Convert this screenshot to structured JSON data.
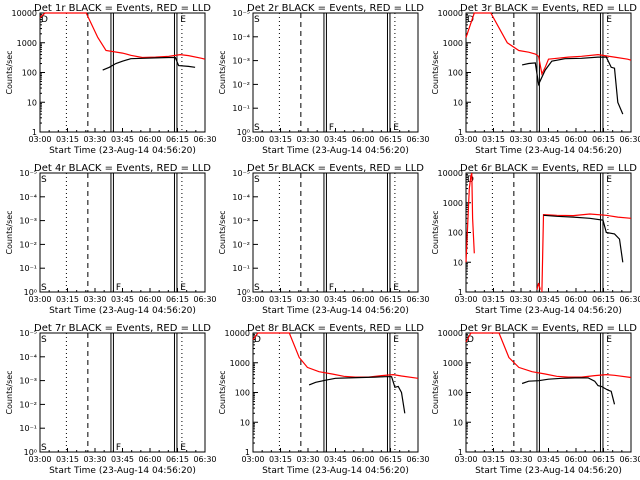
{
  "chart_data": {
    "type": "line",
    "x_axis_title": "Start Time (23-Aug-14 04:56:20)",
    "x_ticks": [
      "03:00",
      "03:15",
      "03:30",
      "03:45",
      "06:00",
      "06:15",
      "06:30"
    ],
    "ylabel": "Counts/sec",
    "y_scale": "log",
    "y_range": [
      1,
      10000
    ],
    "y_ticks_numeric": [
      "1",
      "10",
      "100",
      "1000",
      "10000"
    ],
    "y_ticks_exponent": [
      "10⁰",
      "10⁻¹",
      "10⁻²",
      "10⁻³",
      "10⁻⁴",
      "10⁻⁵"
    ],
    "series_colors": {
      "events": "#000000",
      "lld": "#ff0000"
    },
    "panels": [
      {
        "title": "Det 1r BLACK = Events, RED = LLD",
        "has_data": true,
        "marker": "D",
        "mode": "numeric",
        "lld": [
          [
            0.0,
            7000
          ],
          [
            0.03,
            10000
          ],
          [
            0.28,
            10000
          ],
          [
            0.35,
            1500
          ],
          [
            0.4,
            550
          ],
          [
            0.5,
            450
          ],
          [
            0.55,
            380
          ],
          [
            0.62,
            320
          ],
          [
            0.7,
            330
          ],
          [
            0.78,
            350
          ],
          [
            0.85,
            400
          ],
          [
            0.9,
            370
          ],
          [
            0.98,
            300
          ],
          [
            1.0,
            280
          ]
        ],
        "events": [
          [
            0.38,
            120
          ],
          [
            0.42,
            150
          ],
          [
            0.46,
            200
          ],
          [
            0.5,
            240
          ],
          [
            0.55,
            290
          ],
          [
            0.62,
            300
          ],
          [
            0.7,
            310
          ],
          [
            0.78,
            320
          ],
          [
            0.82,
            320
          ],
          [
            0.84,
            170
          ],
          [
            0.9,
            160
          ],
          [
            0.94,
            150
          ]
        ]
      },
      {
        "title": "Det 2r BLACK = Events, RED = LLD",
        "has_data": false,
        "marker": "S",
        "mode": "exponent",
        "lld": [],
        "events": []
      },
      {
        "title": "Det 3r BLACK = Events, RED = LLD",
        "has_data": true,
        "marker": "D",
        "mode": "numeric",
        "lld": [
          [
            0.0,
            1500
          ],
          [
            0.05,
            10000
          ],
          [
            0.15,
            10000
          ],
          [
            0.22,
            2000
          ],
          [
            0.25,
            1000
          ],
          [
            0.32,
            550
          ],
          [
            0.38,
            480
          ],
          [
            0.42,
            420
          ],
          [
            0.44,
            350
          ],
          [
            0.46,
            90
          ],
          [
            0.48,
            150
          ],
          [
            0.5,
            280
          ],
          [
            0.55,
            300
          ],
          [
            0.62,
            330
          ],
          [
            0.7,
            350
          ],
          [
            0.8,
            400
          ],
          [
            0.9,
            330
          ],
          [
            0.98,
            280
          ],
          [
            1.0,
            260
          ]
        ],
        "events": [
          [
            0.34,
            180
          ],
          [
            0.38,
            200
          ],
          [
            0.42,
            210
          ],
          [
            0.44,
            40
          ],
          [
            0.48,
            120
          ],
          [
            0.52,
            240
          ],
          [
            0.6,
            290
          ],
          [
            0.7,
            300
          ],
          [
            0.8,
            330
          ],
          [
            0.85,
            330
          ],
          [
            0.88,
            150
          ],
          [
            0.9,
            140
          ],
          [
            0.92,
            10
          ],
          [
            0.95,
            4
          ]
        ]
      },
      {
        "title": "Det 4r BLACK = Events, RED = LLD",
        "has_data": false,
        "marker": "S",
        "mode": "exponent",
        "lld": [],
        "events": []
      },
      {
        "title": "Det 5r BLACK = Events, RED = LLD",
        "has_data": false,
        "marker": "S",
        "mode": "exponent",
        "lld": [],
        "events": []
      },
      {
        "title": "Det 6r BLACK = Events, RED = LLD",
        "has_data": true,
        "marker": "D",
        "mode": "numeric",
        "lld": [
          [
            0.0,
            10
          ],
          [
            0.02,
            3000
          ],
          [
            0.03,
            8000
          ],
          [
            0.035,
            10000
          ],
          [
            0.04,
            300
          ],
          [
            0.05,
            20
          ]
        ],
        "lld2": [
          [
            0.43,
            1.2
          ],
          [
            0.44,
            2
          ],
          [
            0.45,
            1.2
          ]
        ],
        "lld3": [
          [
            0.46,
            1
          ],
          [
            0.47,
            400
          ],
          [
            0.55,
            380
          ],
          [
            0.65,
            370
          ],
          [
            0.75,
            420
          ],
          [
            0.85,
            380
          ],
          [
            0.92,
            330
          ],
          [
            1.0,
            300
          ]
        ],
        "events": [
          [
            0.47,
            380
          ],
          [
            0.55,
            350
          ],
          [
            0.65,
            330
          ],
          [
            0.75,
            300
          ],
          [
            0.83,
            260
          ],
          [
            0.85,
            100
          ],
          [
            0.9,
            90
          ],
          [
            0.93,
            60
          ],
          [
            0.95,
            10
          ]
        ]
      },
      {
        "title": "Det 7r BLACK = Events, RED = LLD",
        "has_data": false,
        "marker": "S",
        "mode": "exponent",
        "lld": [],
        "events": []
      },
      {
        "title": "Det 8r BLACK = Events, RED = LLD",
        "has_data": true,
        "marker": "D",
        "mode": "numeric",
        "lld": [
          [
            0.0,
            6000
          ],
          [
            0.03,
            10000
          ],
          [
            0.22,
            10000
          ],
          [
            0.28,
            1500
          ],
          [
            0.33,
            700
          ],
          [
            0.4,
            500
          ],
          [
            0.48,
            420
          ],
          [
            0.55,
            350
          ],
          [
            0.62,
            330
          ],
          [
            0.7,
            330
          ],
          [
            0.78,
            370
          ],
          [
            0.85,
            400
          ],
          [
            0.9,
            360
          ],
          [
            1.0,
            300
          ]
        ],
        "events": [
          [
            0.34,
            180
          ],
          [
            0.38,
            220
          ],
          [
            0.44,
            260
          ],
          [
            0.5,
            300
          ],
          [
            0.58,
            310
          ],
          [
            0.66,
            320
          ],
          [
            0.74,
            330
          ],
          [
            0.8,
            340
          ],
          [
            0.84,
            340
          ],
          [
            0.86,
            150
          ],
          [
            0.88,
            160
          ],
          [
            0.9,
            100
          ],
          [
            0.92,
            20
          ]
        ]
      },
      {
        "title": "Det 9r BLACK = Events, RED = LLD",
        "has_data": true,
        "marker": "D",
        "mode": "numeric",
        "lld": [
          [
            0.0,
            5000
          ],
          [
            0.03,
            10000
          ],
          [
            0.2,
            10000
          ],
          [
            0.26,
            1500
          ],
          [
            0.32,
            700
          ],
          [
            0.4,
            500
          ],
          [
            0.48,
            420
          ],
          [
            0.55,
            350
          ],
          [
            0.62,
            330
          ],
          [
            0.7,
            330
          ],
          [
            0.78,
            370
          ],
          [
            0.85,
            400
          ],
          [
            0.9,
            380
          ],
          [
            1.0,
            320
          ]
        ],
        "events": [
          [
            0.34,
            200
          ],
          [
            0.38,
            240
          ],
          [
            0.44,
            250
          ],
          [
            0.5,
            280
          ],
          [
            0.58,
            300
          ],
          [
            0.66,
            310
          ],
          [
            0.74,
            310
          ],
          [
            0.78,
            240
          ],
          [
            0.8,
            170
          ],
          [
            0.82,
            160
          ],
          [
            0.86,
            120
          ],
          [
            0.88,
            110
          ],
          [
            0.9,
            40
          ]
        ]
      }
    ]
  }
}
